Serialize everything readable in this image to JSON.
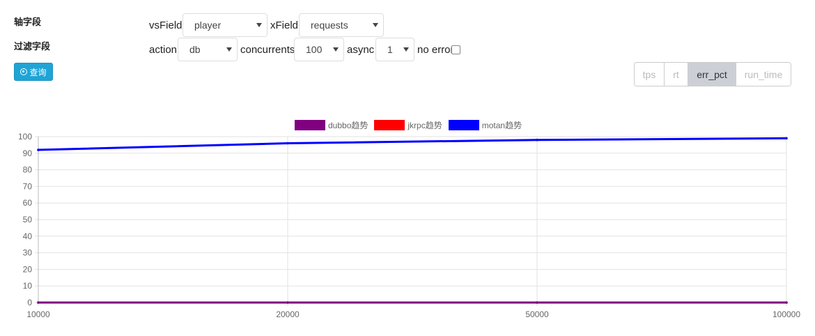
{
  "labels": {
    "axis": "轴字段",
    "filter": "过滤字段"
  },
  "query_button": {
    "label": "查询",
    "icon": "dot-circle-icon"
  },
  "controls": {
    "vsField": {
      "label": "vsField",
      "value": "player"
    },
    "xField": {
      "label": "xField",
      "value": "requests"
    },
    "action": {
      "label": "action",
      "value": "db"
    },
    "concurrents": {
      "label": "concurrents",
      "value": "100"
    },
    "async": {
      "label": "async",
      "value": "1"
    },
    "no_error": {
      "label": "no error",
      "checked": false
    }
  },
  "metric_tabs": [
    {
      "label": "tps",
      "active": false
    },
    {
      "label": "rt",
      "active": false
    },
    {
      "label": "err_pct",
      "active": true
    },
    {
      "label": "run_time",
      "active": false
    }
  ],
  "colors": {
    "accent": "#1fa4d6",
    "dubbo": "#800080",
    "jkrpc": "#ff0000",
    "motan": "#0000ff"
  },
  "chart_data": {
    "type": "line",
    "categories": [
      "10000",
      "20000",
      "50000",
      "100000"
    ],
    "series": [
      {
        "name": "dubbo趋势",
        "values": [
          0,
          0,
          0,
          0
        ],
        "color": "#800080"
      },
      {
        "name": "jkrpc趋势",
        "values": [
          0,
          0,
          0,
          0
        ],
        "color": "#ff0000"
      },
      {
        "name": "motan趋势",
        "values": [
          92,
          96,
          98,
          99
        ],
        "color": "#0000ff"
      }
    ],
    "yticks": [
      "0",
      "10",
      "20",
      "30",
      "40",
      "50",
      "60",
      "70",
      "80",
      "90",
      "100"
    ],
    "ylim": [
      0,
      100
    ],
    "grid": true,
    "legend": "top-center"
  }
}
